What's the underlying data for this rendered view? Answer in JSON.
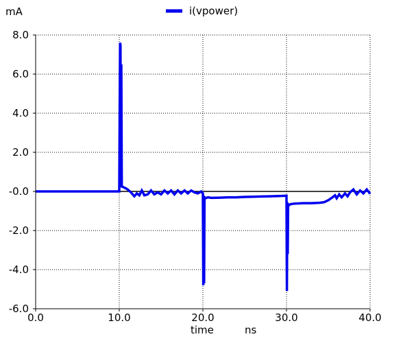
{
  "chart_data": {
    "type": "line",
    "title": "",
    "xlabel": "time",
    "xunit": "ns",
    "ylabel": "",
    "yunit": "mA",
    "xlim": [
      0,
      40
    ],
    "ylim": [
      -6,
      8
    ],
    "x_ticks": [
      0,
      10,
      20,
      30,
      40
    ],
    "x_tick_labels": [
      "0.0",
      "10.0",
      "20.0",
      "30.0",
      "40.0"
    ],
    "y_ticks": [
      8,
      6,
      4,
      2,
      0,
      -2,
      -4,
      -6
    ],
    "y_tick_labels": [
      "8.0",
      "6.0",
      "4.0",
      "2.0",
      "-0.0",
      "-2.0",
      "-4.0",
      "-6.0"
    ],
    "grid": true,
    "legend_position": "top-center",
    "zero_line": true,
    "series": [
      {
        "name": "i(vpower)",
        "color": "#0000ee",
        "x": [
          0,
          10,
          10.05,
          10.1,
          10.15,
          10.2,
          10.25,
          10.3,
          10.6,
          11.0,
          11.4,
          11.8,
          12.1,
          12.4,
          12.7,
          13.0,
          13.4,
          13.8,
          14.2,
          14.6,
          15.0,
          15.4,
          15.8,
          16.2,
          16.6,
          17.0,
          17.4,
          17.8,
          18.2,
          18.6,
          19.0,
          19.4,
          19.8,
          20.0,
          20.05,
          20.1,
          20.15,
          20.2,
          20.3,
          20.6,
          21.0,
          22.0,
          23.0,
          24.0,
          25.0,
          26.0,
          27.0,
          28.0,
          29.0,
          30.0,
          30.05,
          30.1,
          30.15,
          30.2,
          30.3,
          30.5,
          31.0,
          32.0,
          33.0,
          34.0,
          34.5,
          35.0,
          35.5,
          35.8,
          36.0,
          36.3,
          36.6,
          37.0,
          37.3,
          37.6,
          38.0,
          38.4,
          38.8,
          39.2,
          39.6,
          40.0
        ],
        "y": [
          0,
          0,
          4.0,
          7.6,
          7.5,
          0.2,
          6.5,
          0.25,
          0.2,
          0.1,
          -0.05,
          -0.25,
          -0.1,
          -0.2,
          0.05,
          -0.2,
          -0.15,
          0.05,
          -0.15,
          -0.05,
          -0.15,
          0.05,
          -0.1,
          0.05,
          -0.15,
          0.05,
          -0.1,
          0.05,
          -0.1,
          0.05,
          -0.05,
          -0.1,
          0.0,
          -0.1,
          -4.8,
          -0.3,
          -4.7,
          -0.3,
          -0.35,
          -0.3,
          -0.33,
          -0.32,
          -0.3,
          -0.3,
          -0.28,
          -0.27,
          -0.26,
          -0.25,
          -0.24,
          -0.22,
          -5.1,
          -0.6,
          -3.2,
          -0.65,
          -0.7,
          -0.65,
          -0.62,
          -0.6,
          -0.6,
          -0.58,
          -0.55,
          -0.45,
          -0.3,
          -0.2,
          -0.35,
          -0.15,
          -0.3,
          -0.1,
          -0.25,
          -0.05,
          0.1,
          -0.15,
          0.05,
          -0.1,
          0.1,
          -0.12
        ]
      }
    ]
  }
}
